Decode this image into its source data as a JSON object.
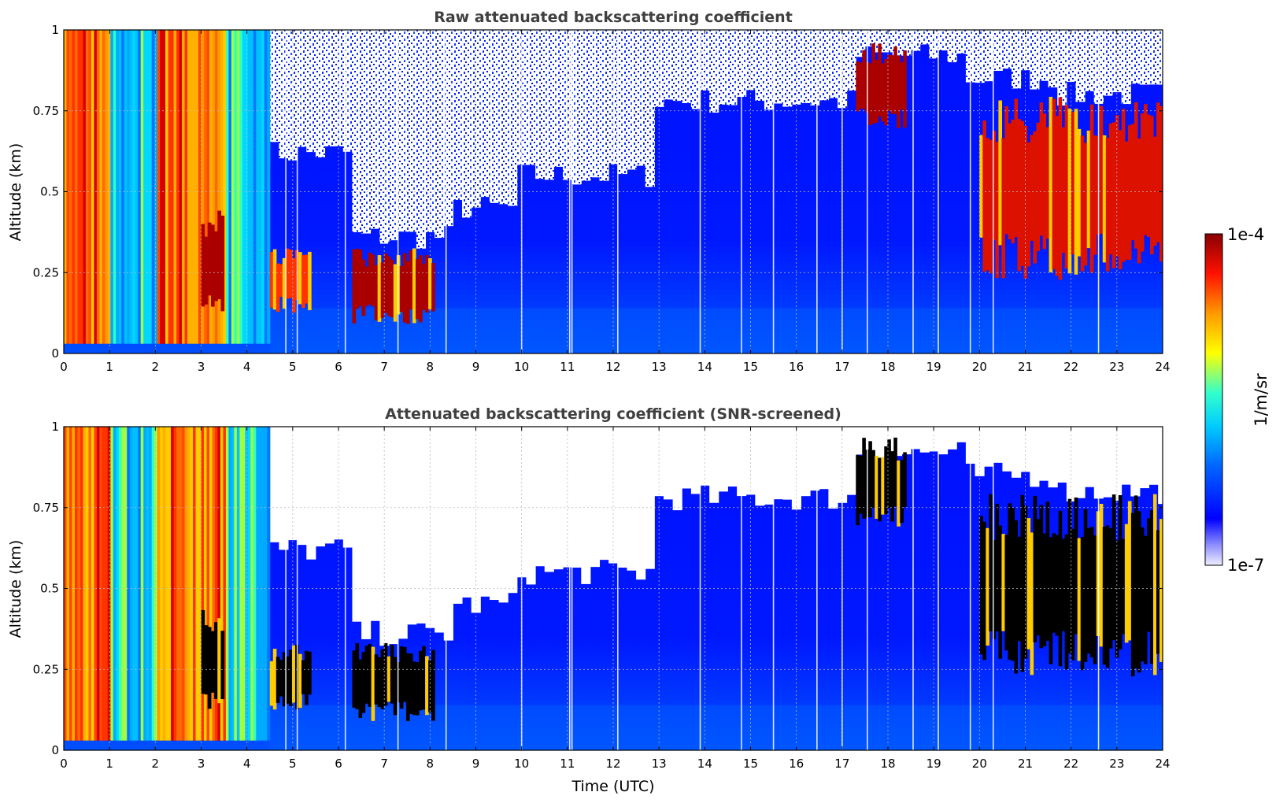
{
  "chart_data": [
    {
      "type": "heatmap",
      "title": "Raw attenuated backscattering coefficient",
      "xlabel": "",
      "ylabel": "Altitude (km)",
      "xlim": [
        0,
        24
      ],
      "ylim": [
        0,
        1
      ],
      "x_ticks": [
        "0",
        "1",
        "2",
        "3",
        "4",
        "5",
        "6",
        "7",
        "8",
        "9",
        "10",
        "11",
        "12",
        "13",
        "14",
        "15",
        "16",
        "17",
        "18",
        "19",
        "20",
        "21",
        "22",
        "23",
        "24"
      ],
      "y_ticks": [
        "0",
        "0.25",
        "0.5",
        "0.75",
        "1"
      ],
      "grid": true,
      "screened": false,
      "features": [
        {
          "time_range": [
            0.0,
            1.0
          ],
          "altitude_range": [
            0.03,
            1.0
          ],
          "level": "high (red/orange)"
        },
        {
          "time_range": [
            2.0,
            3.5
          ],
          "altitude_range": [
            0.03,
            1.0
          ],
          "level": "high (red/orange)"
        },
        {
          "time_range": [
            3.0,
            3.5
          ],
          "altitude_range": [
            0.15,
            0.4
          ],
          "level": "max (dark red)"
        },
        {
          "time_range": [
            4.5,
            5.4
          ],
          "altitude_range": [
            0.15,
            0.3
          ],
          "level": "high (red)"
        },
        {
          "time_range": [
            6.3,
            8.1
          ],
          "altitude_range": [
            0.12,
            0.3
          ],
          "level": "max (dark red)"
        },
        {
          "time_range": [
            17.3,
            18.4
          ],
          "altitude_range": [
            0.72,
            0.93
          ],
          "level": "max (dark red)"
        },
        {
          "time_range": [
            20.0,
            24.0
          ],
          "altitude_range": [
            0.3,
            0.72
          ],
          "level": "high (red)"
        }
      ]
    },
    {
      "type": "heatmap",
      "title": "Attenuated backscattering coefficient (SNR-screened)",
      "xlabel": "Time (UTC)",
      "ylabel": "Altitude (km)",
      "xlim": [
        0,
        24
      ],
      "ylim": [
        0,
        1
      ],
      "x_ticks": [
        "0",
        "1",
        "2",
        "3",
        "4",
        "5",
        "6",
        "7",
        "8",
        "9",
        "10",
        "11",
        "12",
        "13",
        "14",
        "15",
        "16",
        "17",
        "18",
        "19",
        "20",
        "21",
        "22",
        "23",
        "24"
      ],
      "y_ticks": [
        "0",
        "0.25",
        "0.5",
        "0.75",
        "1"
      ],
      "grid": true,
      "screened": true,
      "features": [
        {
          "time_range": [
            0.0,
            1.0
          ],
          "altitude_range": [
            0.03,
            1.0
          ],
          "level": "high (red/orange)"
        },
        {
          "time_range": [
            2.0,
            3.5
          ],
          "altitude_range": [
            0.03,
            1.0
          ],
          "level": "high (red/orange)"
        },
        {
          "time_range": [
            3.0,
            3.5
          ],
          "altitude_range": [
            0.15,
            0.4
          ],
          "level": "saturated (black)"
        },
        {
          "time_range": [
            4.5,
            5.4
          ],
          "altitude_range": [
            0.15,
            0.3
          ],
          "level": "saturated (black)"
        },
        {
          "time_range": [
            6.3,
            8.1
          ],
          "altitude_range": [
            0.12,
            0.3
          ],
          "level": "saturated (black)"
        },
        {
          "time_range": [
            17.3,
            18.4
          ],
          "altitude_range": [
            0.72,
            0.93
          ],
          "level": "saturated (black)"
        },
        {
          "time_range": [
            20.0,
            24.0
          ],
          "altitude_range": [
            0.3,
            0.72
          ],
          "level": "saturated (black)"
        }
      ]
    }
  ],
  "colorbar": {
    "max_label": "1e-4",
    "min_label": "1e-7",
    "unit_label": "1/m/sr",
    "colors": [
      "#eeeeff",
      "#0000ff",
      "#00aaff",
      "#00ffcc",
      "#ffff00",
      "#ff8800",
      "#ff0000",
      "#880000"
    ]
  }
}
